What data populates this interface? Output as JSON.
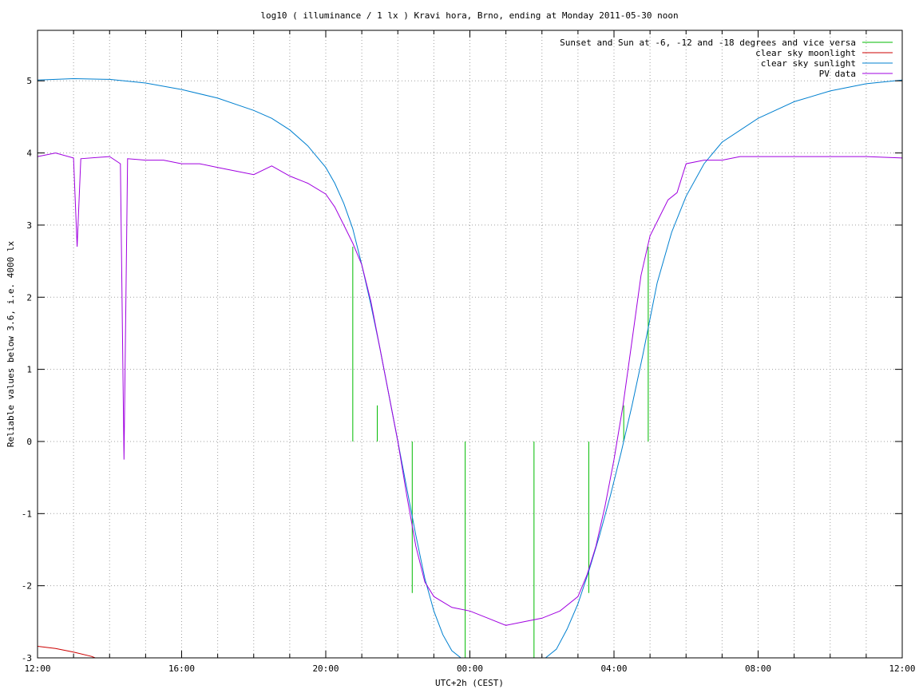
{
  "chart_data": {
    "type": "line",
    "title": "log10 ( illuminance / 1 lx ) Kravi hora, Brno, ending at Monday 2011-05-30 noon",
    "xlabel": "UTC+2h (CEST)",
    "ylabel": "Reliable values below 3.6, i.e. 4000 lx",
    "x_ticks": [
      "12:00",
      "16:00",
      "20:00",
      "00:00",
      "04:00",
      "08:00",
      "12:00"
    ],
    "y_ticks": [
      "5",
      "4",
      "3",
      "2",
      "1",
      "0",
      "-1",
      "-2",
      "-3"
    ],
    "xlim_hours": [
      0,
      24
    ],
    "ylim": [
      -3,
      5.7
    ],
    "grid": true,
    "legend_position": "top-right",
    "series": [
      {
        "name": "Sunset and Sun at -6, -12 and -18 degrees and vice versa",
        "color": "#00bb00",
        "events": [
          {
            "x": 8.75,
            "y": 2.7
          },
          {
            "x": 9.43,
            "y": 0.5
          },
          {
            "x": 10.4,
            "y": -2.1
          },
          {
            "x": 11.87,
            "y": -3.0
          },
          {
            "x": 13.78,
            "y": -3.0
          },
          {
            "x": 15.3,
            "y": -2.1
          },
          {
            "x": 16.27,
            "y": 0.5
          },
          {
            "x": 16.95,
            "y": 2.7
          }
        ]
      },
      {
        "name": "clear sky moonlight",
        "color": "#cc0000",
        "x": [
          0,
          0.5,
          1.0,
          1.5,
          1.6
        ],
        "y": [
          -2.84,
          -2.87,
          -2.92,
          -2.98,
          -3.0
        ]
      },
      {
        "name": "clear sky sunlight",
        "color": "#0080d0",
        "x": [
          0,
          1,
          2,
          3,
          4,
          5,
          6,
          6.5,
          7,
          7.5,
          8,
          8.25,
          8.5,
          8.75,
          9,
          9.25,
          9.5,
          9.75,
          10,
          10.25,
          10.5,
          10.75,
          11,
          11.25,
          11.5,
          11.75,
          12,
          12.3,
          12.6,
          12.9,
          13.2,
          13.5,
          13.8,
          14.1,
          14.4,
          14.7,
          15.0,
          15.3,
          15.6,
          15.9,
          16.2,
          16.5,
          16.8,
          17.2,
          17.6,
          18,
          18.5,
          19,
          20,
          21,
          22,
          23,
          24
        ],
        "y": [
          5.01,
          5.03,
          5.02,
          4.97,
          4.88,
          4.76,
          4.59,
          4.48,
          4.32,
          4.1,
          3.8,
          3.58,
          3.3,
          2.95,
          2.45,
          1.9,
          1.3,
          0.65,
          0.0,
          -0.65,
          -1.3,
          -1.9,
          -2.35,
          -2.68,
          -2.9,
          -3.0,
          -3.0,
          -3.0,
          -3.0,
          -3.0,
          -3.0,
          -3.0,
          -3.0,
          -3.0,
          -2.88,
          -2.6,
          -2.25,
          -1.8,
          -1.3,
          -0.75,
          -0.15,
          0.5,
          1.2,
          2.2,
          2.9,
          3.4,
          3.85,
          4.15,
          4.48,
          4.71,
          4.86,
          4.96,
          5.01
        ]
      },
      {
        "name": "PV data",
        "color": "#a000e0",
        "x": [
          0,
          0.5,
          1,
          1.1,
          1.2,
          2,
          2.3,
          2.4,
          2.5,
          3,
          3.5,
          4,
          4.5,
          5,
          5.5,
          6,
          6.5,
          7,
          7.5,
          8,
          8.25,
          8.5,
          8.75,
          9.0,
          9.25,
          9.5,
          9.75,
          10,
          10.25,
          10.5,
          10.75,
          11,
          11.5,
          12,
          12.5,
          13,
          13.5,
          14,
          14.5,
          15,
          15.25,
          15.5,
          15.75,
          16,
          16.25,
          16.5,
          16.75,
          17,
          17.25,
          17.5,
          17.75,
          18,
          18.5,
          19,
          19.5,
          20,
          21,
          22,
          23,
          23.5,
          24
        ],
        "y": [
          3.95,
          4.0,
          3.93,
          2.7,
          3.92,
          3.95,
          3.85,
          -0.25,
          3.92,
          3.9,
          3.9,
          3.85,
          3.85,
          3.8,
          3.75,
          3.7,
          3.82,
          3.68,
          3.58,
          3.43,
          3.25,
          3.0,
          2.75,
          2.45,
          1.95,
          1.3,
          0.65,
          0.0,
          -0.75,
          -1.45,
          -1.95,
          -2.15,
          -2.3,
          -2.35,
          -2.45,
          -2.55,
          -2.5,
          -2.45,
          -2.35,
          -2.15,
          -1.85,
          -1.45,
          -0.9,
          -0.25,
          0.5,
          1.4,
          2.3,
          2.85,
          3.1,
          3.35,
          3.45,
          3.85,
          3.9,
          3.9,
          3.95,
          3.95,
          3.95,
          3.95,
          3.95,
          3.94,
          3.93
        ]
      }
    ]
  }
}
